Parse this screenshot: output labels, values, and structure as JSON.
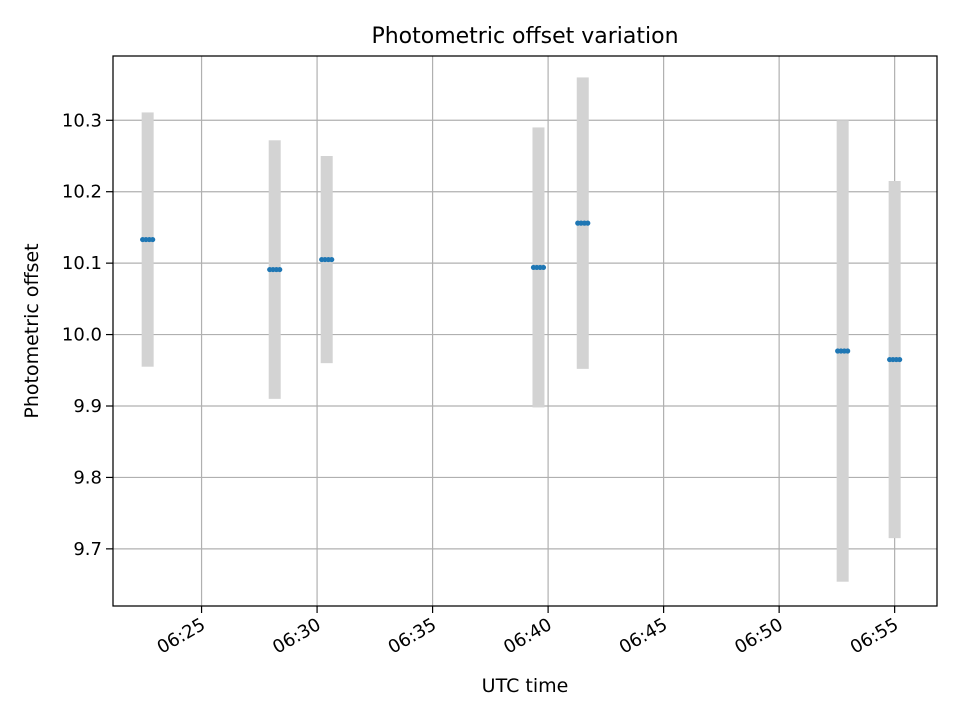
{
  "chart_data": {
    "type": "scatter",
    "title": "Photometric offset variation",
    "xlabel": "UTC time",
    "ylabel": "Photometric offset",
    "x_ticks": [
      "06:25",
      "06:30",
      "06:35",
      "06:40",
      "06:45",
      "06:50",
      "06:55"
    ],
    "y_ticks": [
      "9.7",
      "9.8",
      "9.9",
      "10.0",
      "10.1",
      "10.2",
      "10.3"
    ],
    "xlim": [
      "06:21:10",
      "06:56:50"
    ],
    "ylim": [
      9.62,
      10.39
    ],
    "grid": true,
    "colors": {
      "points": "#1f77b4",
      "errorbars": "#d3d3d3",
      "grid": "#b0b0b0"
    },
    "points": [
      {
        "time": "06:22:40",
        "value": 10.133,
        "low": 9.955,
        "high": 10.311
      },
      {
        "time": "06:28:10",
        "value": 10.091,
        "low": 9.91,
        "high": 10.272
      },
      {
        "time": "06:30:25",
        "value": 10.105,
        "low": 9.96,
        "high": 10.25
      },
      {
        "time": "06:39:35",
        "value": 10.094,
        "low": 9.898,
        "high": 10.29
      },
      {
        "time": "06:41:30",
        "value": 10.156,
        "low": 9.952,
        "high": 10.36
      },
      {
        "time": "06:52:45",
        "value": 9.977,
        "low": 9.654,
        "high": 10.3
      },
      {
        "time": "06:55:00",
        "value": 9.965,
        "low": 9.715,
        "high": 10.215
      }
    ]
  }
}
